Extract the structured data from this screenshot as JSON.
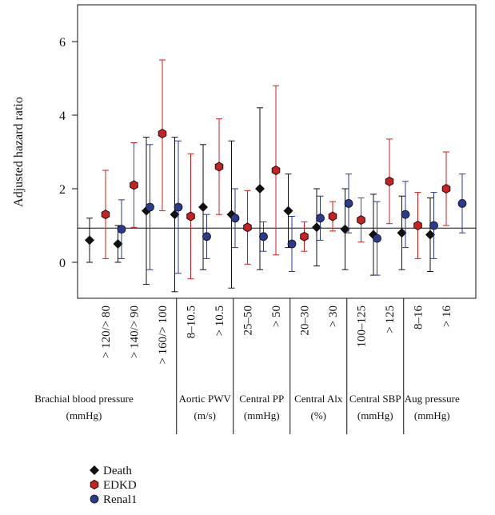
{
  "chart_data": {
    "type": "scatter",
    "ylabel": "Adjusted hazard ratio",
    "ylim": [
      -1,
      7
    ],
    "yticks": [
      "0",
      "2",
      "4",
      "6"
    ],
    "reference_line": 0.93,
    "categories": [
      "> 120/> 80",
      "> 140/> 90",
      "> 160/> 100",
      "8–10.5",
      "> 10.5",
      "25–50",
      "> 50",
      "20–30",
      "> 30",
      "100–125",
      "> 125",
      "8–16",
      "> 16"
    ],
    "groups": [
      {
        "label": "Brachial blood pressure",
        "unit": "(mmHg)",
        "count": 3
      },
      {
        "label": "Aortic PWV",
        "unit": "(m/s)",
        "count": 2
      },
      {
        "label": "Central PP",
        "unit": "(mmHg)",
        "count": 2
      },
      {
        "label": "Central Alx",
        "unit": "(%)",
        "count": 2
      },
      {
        "label": "Central SBP",
        "unit": "(mmHg)",
        "count": 2
      },
      {
        "label": "Aug pressure",
        "unit": "(mmHg)",
        "count": 2
      }
    ],
    "series": [
      {
        "name": "Death",
        "color": "#111111",
        "marker": "diamond",
        "values": [
          0.6,
          0.5,
          1.4,
          1.3,
          1.5,
          1.3,
          2.0,
          1.4,
          0.95,
          0.9,
          0.75,
          0.8,
          0.75
        ],
        "lower": [
          0.0,
          0.0,
          -0.6,
          -0.8,
          -0.2,
          -0.7,
          -0.2,
          0.4,
          -0.1,
          -0.2,
          -0.35,
          -0.2,
          -0.25
        ],
        "upper": [
          1.2,
          1.0,
          3.4,
          3.4,
          3.2,
          3.3,
          4.2,
          2.4,
          2.0,
          2.0,
          1.85,
          1.8,
          1.75
        ]
      },
      {
        "name": "EDKD",
        "color": "#cc1f1f",
        "marker": "hexagon",
        "values": [
          1.3,
          2.1,
          3.5,
          1.25,
          2.6,
          0.95,
          2.5,
          0.7,
          1.25,
          1.15,
          2.2,
          1.0,
          2.0
        ],
        "lower": [
          0.1,
          0.95,
          1.4,
          -0.45,
          1.3,
          -0.05,
          0.2,
          0.3,
          0.85,
          0.55,
          1.05,
          0.1,
          1.0
        ],
        "upper": [
          2.5,
          3.25,
          5.5,
          2.95,
          3.9,
          1.95,
          4.8,
          1.1,
          1.65,
          1.75,
          3.35,
          1.9,
          3.0
        ]
      },
      {
        "name": "Renal1",
        "color": "#2a3a8c",
        "marker": "circle",
        "values": [
          0.9,
          1.5,
          1.5,
          0.7,
          1.2,
          0.7,
          0.5,
          1.2,
          1.6,
          0.65,
          1.3,
          1.0,
          1.6
        ],
        "lower": [
          0.1,
          -0.2,
          -0.3,
          0.1,
          0.4,
          0.3,
          -0.25,
          0.6,
          0.8,
          -0.35,
          0.4,
          0.1,
          0.8
        ],
        "upper": [
          1.7,
          3.2,
          3.3,
          1.3,
          2.0,
          1.1,
          1.25,
          1.8,
          2.4,
          1.65,
          2.2,
          1.9,
          2.4
        ]
      }
    ],
    "legend_position": "bottom-left"
  }
}
